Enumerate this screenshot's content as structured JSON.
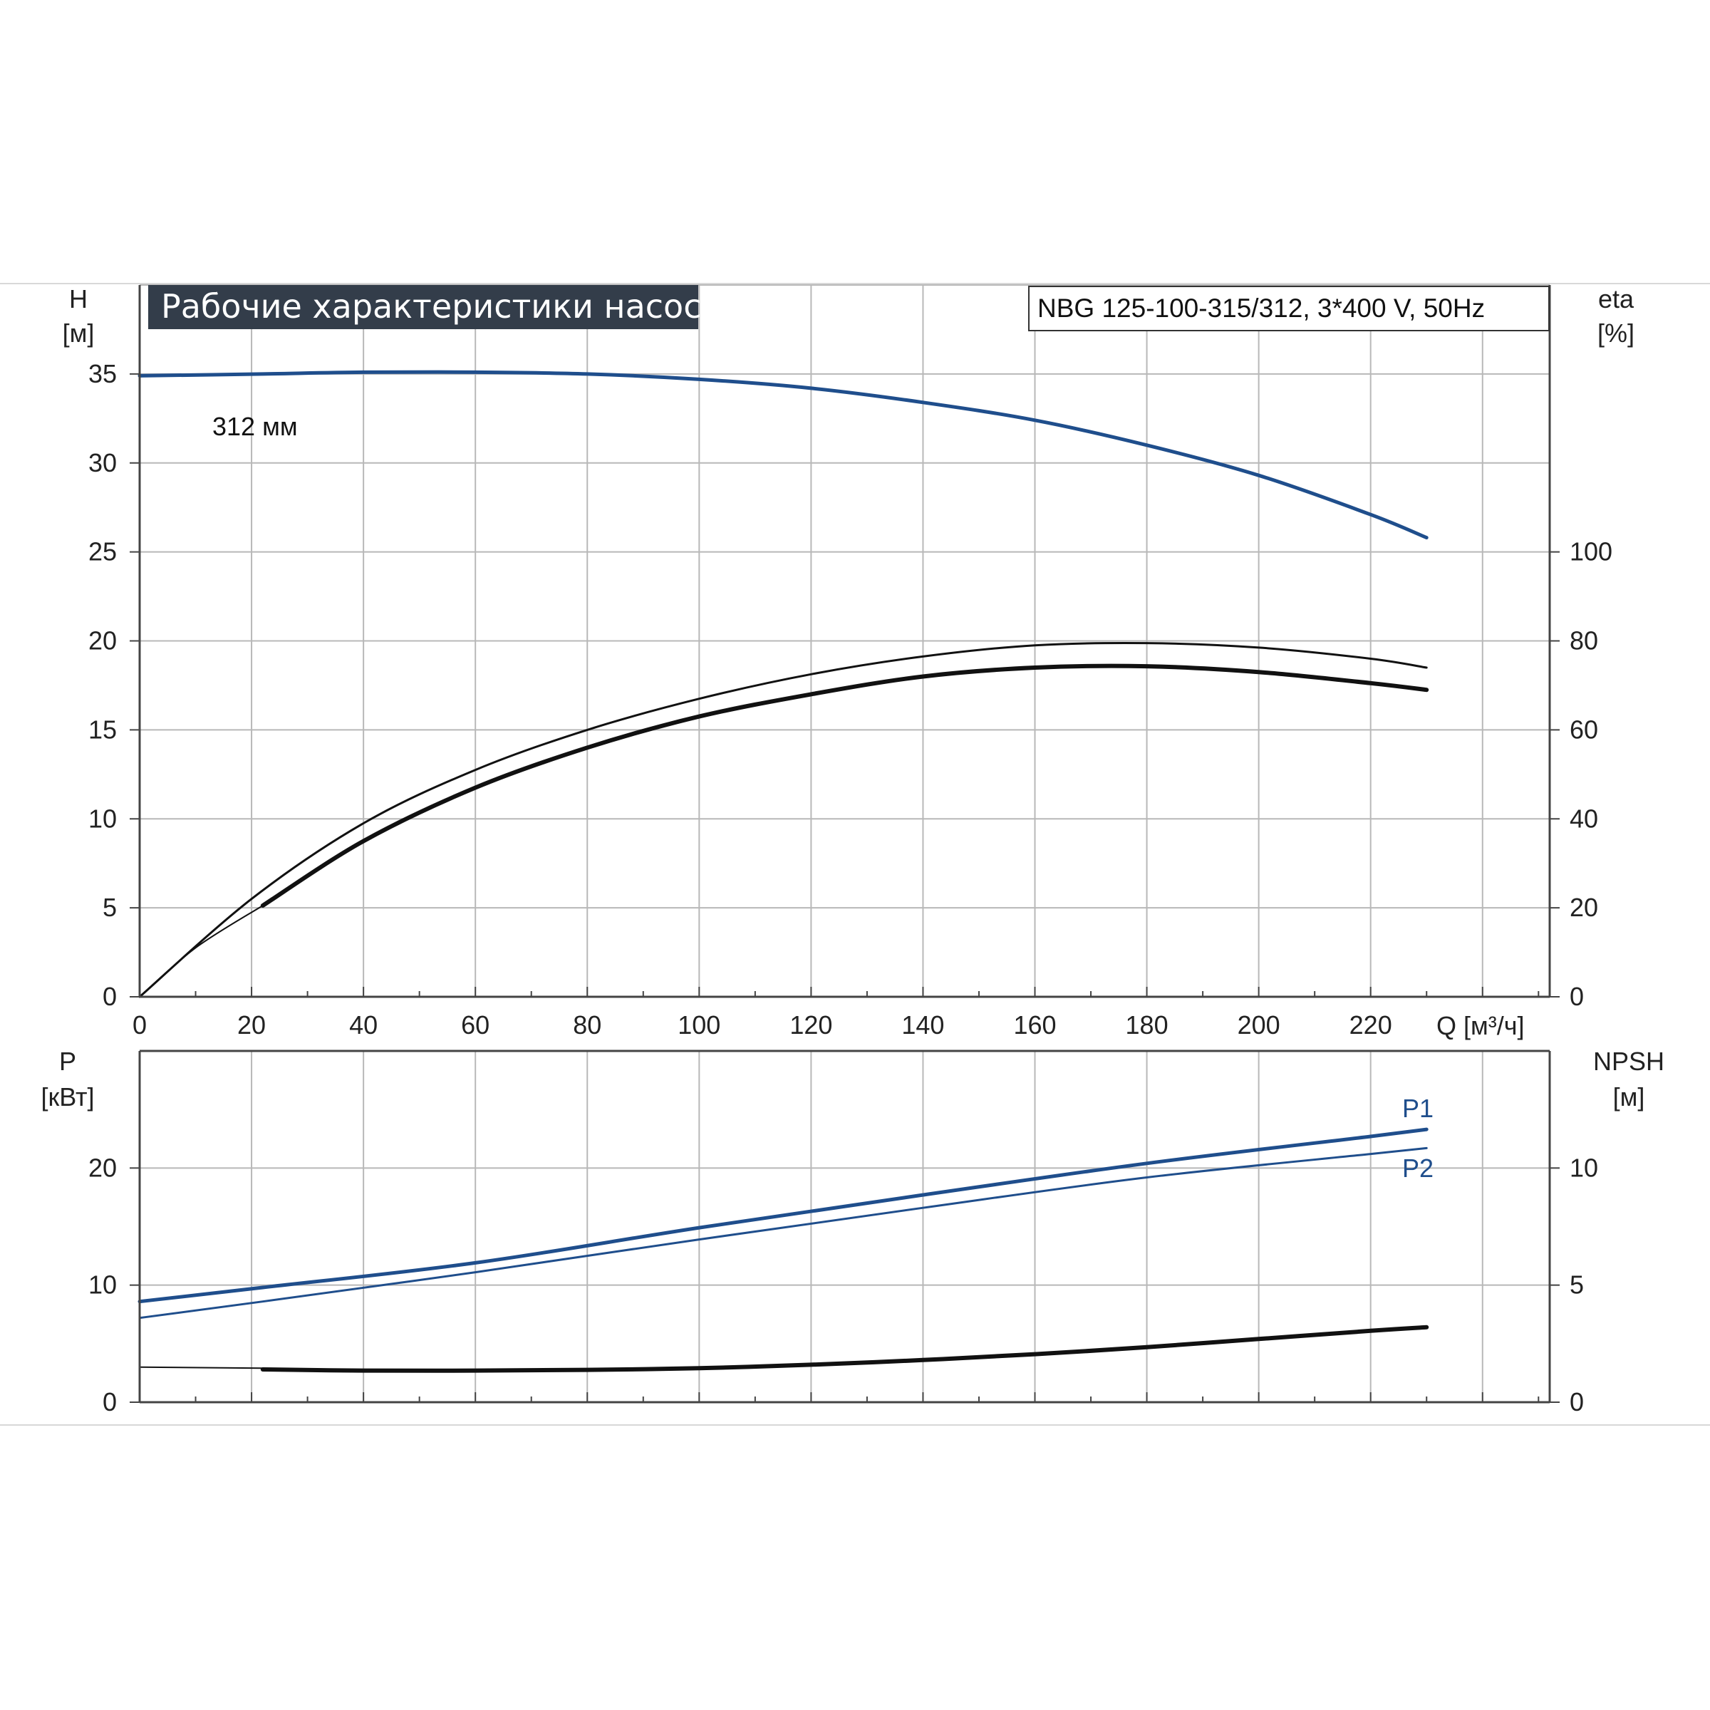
{
  "title": "Рабочие характеристики насоса",
  "model": "NBG 125-100-315/312, 3*400 V, 50Hz",
  "colors": {
    "blue": "#1f4e8c",
    "black": "#111111",
    "grid": "#b8b8b8",
    "title_bg": "#333d4a"
  },
  "chart_data": [
    {
      "type": "line",
      "x_label": "Q [м³/ч]",
      "x_ticks": [
        0,
        20,
        40,
        60,
        80,
        100,
        120,
        140,
        160,
        180,
        200,
        220
      ],
      "xlim": [
        0,
        252
      ],
      "y_left": {
        "label_top": "H",
        "label_unit": "[м]",
        "ticks": [
          0,
          5,
          10,
          15,
          20,
          25,
          30,
          35
        ],
        "range": [
          0,
          40
        ]
      },
      "y_right": {
        "label_top": "eta",
        "label_unit": "[%]",
        "ticks": [
          0,
          20,
          40,
          60,
          80,
          100
        ],
        "range": [
          0,
          160
        ]
      },
      "grid": true,
      "series": [
        {
          "name": "312 мм",
          "color": "#1f4e8c",
          "axis": "left",
          "width": 5,
          "x": [
            0,
            22,
            40,
            60,
            80,
            100,
            120,
            140,
            160,
            180,
            200,
            220,
            230
          ],
          "y": [
            34.9,
            35.0,
            35.1,
            35.1,
            35.0,
            34.7,
            34.2,
            33.4,
            32.4,
            31.0,
            29.3,
            27.1,
            25.8
          ]
        },
        {
          "color": "#111111",
          "axis": "right",
          "width": 3,
          "x": [
            0,
            20,
            40,
            60,
            80,
            100,
            120,
            140,
            160,
            180,
            200,
            220,
            230
          ],
          "y": [
            0,
            22,
            39,
            51,
            60,
            67,
            72.5,
            76.5,
            79,
            79.5,
            78.5,
            76,
            74
          ]
        },
        {
          "color": "#111111",
          "axis": "right",
          "width": 6,
          "x": [
            22,
            40,
            60,
            80,
            100,
            120,
            140,
            160,
            180,
            200,
            220,
            230
          ],
          "y": [
            20.5,
            35,
            47,
            56,
            63,
            68,
            72,
            74,
            74.3,
            73,
            70.5,
            69
          ]
        },
        {
          "color": "#111111",
          "axis": "right",
          "width": 2,
          "x": [
            0,
            10,
            22
          ],
          "y": [
            0,
            11,
            20.5
          ]
        }
      ]
    },
    {
      "type": "line",
      "x_ticks": [
        0,
        20,
        40,
        60,
        80,
        100,
        120,
        140,
        160,
        180,
        200,
        220
      ],
      "xlim": [
        0,
        252
      ],
      "y_left": {
        "label_top": "P",
        "label_unit": "[кВт]",
        "ticks": [
          0,
          10,
          20
        ],
        "range": [
          0,
          30
        ]
      },
      "y_right": {
        "label_top": "NPSH",
        "label_unit": "[м]",
        "ticks": [
          0,
          5,
          10
        ],
        "range": [
          0,
          15
        ]
      },
      "grid": true,
      "series": [
        {
          "name": "P1",
          "color": "#1f4e8c",
          "axis": "left",
          "width": 5,
          "x": [
            0,
            22,
            60,
            100,
            140,
            180,
            220,
            230
          ],
          "y": [
            8.6,
            9.8,
            11.9,
            14.9,
            17.7,
            20.4,
            22.7,
            23.3
          ]
        },
        {
          "name": "P2",
          "color": "#1f4e8c",
          "axis": "left",
          "width": 3,
          "x": [
            0,
            22,
            60,
            100,
            140,
            180,
            220,
            230
          ],
          "y": [
            7.2,
            8.6,
            11.1,
            13.9,
            16.6,
            19.2,
            21.2,
            21.7
          ]
        },
        {
          "color": "#111111",
          "axis": "right",
          "width": 6,
          "x": [
            22,
            40,
            60,
            80,
            100,
            120,
            140,
            160,
            180,
            200,
            220,
            230
          ],
          "y": [
            1.4,
            1.35,
            1.35,
            1.38,
            1.45,
            1.6,
            1.8,
            2.05,
            2.35,
            2.7,
            3.05,
            3.2
          ]
        },
        {
          "color": "#111111",
          "axis": "right",
          "width": 2,
          "x": [
            0,
            22
          ],
          "y": [
            1.5,
            1.45
          ]
        }
      ]
    }
  ]
}
